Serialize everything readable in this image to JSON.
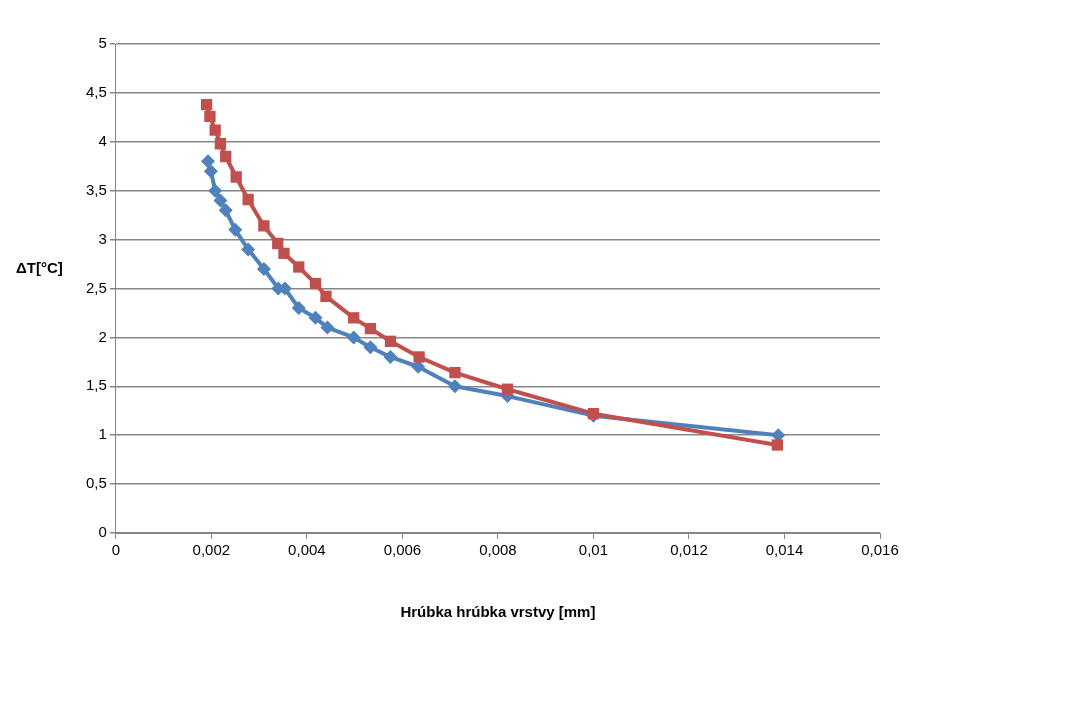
{
  "chart_data": {
    "type": "line",
    "xlabel": "Hrúbka hrúbka vrstvy [mm]",
    "ylabel": "ΔT[°C]",
    "xlim": [
      0,
      0.016
    ],
    "xticks": [
      0,
      {
        "value": 0.002,
        "label": "0,002"
      },
      {
        "value": 0.004,
        "label": "0,004"
      },
      {
        "value": 0.006,
        "label": "0,006"
      },
      {
        "value": 0.008,
        "label": "0,008"
      },
      {
        "value": 0.01,
        "label": "0,01"
      },
      {
        "value": 0.012,
        "label": "0,012"
      },
      {
        "value": 0.014,
        "label": "0,014"
      },
      {
        "value": 0.016,
        "label": "0,016"
      }
    ],
    "ylim": [
      0,
      5
    ],
    "yticks": [
      0,
      {
        "value": 0.5,
        "label": "0,5"
      },
      1,
      {
        "value": 1.5,
        "label": "1,5"
      },
      2,
      {
        "value": 2.5,
        "label": "2,5"
      },
      3,
      {
        "value": 3.5,
        "label": "3,5"
      },
      4,
      {
        "value": 4.5,
        "label": "4,5"
      },
      5
    ],
    "grid": "y",
    "legend": false,
    "series": [
      {
        "color": "#4f81bd",
        "marker": "diamond",
        "x": [
          0.00193,
          0.00199,
          0.00208,
          0.00219,
          0.0023,
          0.0025,
          0.00277,
          0.0031,
          0.0034,
          0.00354,
          0.00383,
          0.00418,
          0.00443,
          0.00498,
          0.00533,
          0.00575,
          0.00633,
          0.0071,
          0.0082,
          0.01,
          0.01387
        ],
        "values": [
          3.8,
          3.7,
          3.5,
          3.4,
          3.3,
          3.1,
          2.9,
          2.7,
          2.5,
          2.5,
          2.3,
          2.2,
          2.1,
          2.0,
          1.9,
          1.8,
          1.7,
          1.5,
          1.4,
          1.2,
          1.0
        ]
      },
      {
        "color": "#c0504d",
        "marker": "square",
        "x": [
          0.0019,
          0.00197,
          0.00208,
          0.00219,
          0.0023,
          0.00252,
          0.00277,
          0.0031,
          0.00339,
          0.00352,
          0.00383,
          0.00418,
          0.0044,
          0.00498,
          0.00533,
          0.00575,
          0.00635,
          0.0071,
          0.0082,
          0.01,
          0.01385
        ],
        "values": [
          4.38,
          4.26,
          4.12,
          3.98,
          3.85,
          3.64,
          3.41,
          3.14,
          2.96,
          2.86,
          2.72,
          2.55,
          2.42,
          2.2,
          2.09,
          1.96,
          1.8,
          1.64,
          1.47,
          1.22,
          0.9
        ]
      }
    ]
  }
}
